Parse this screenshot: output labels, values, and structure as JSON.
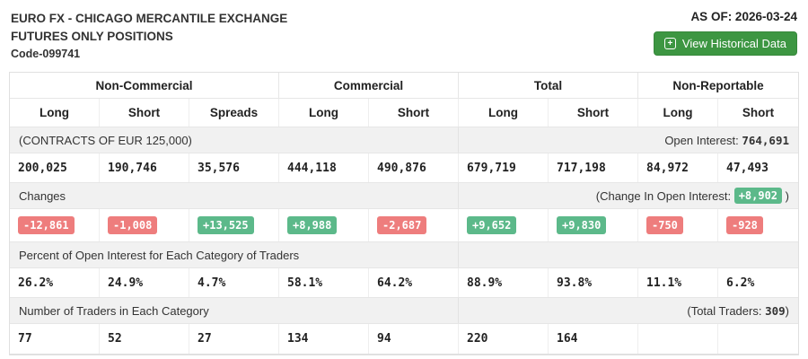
{
  "header": {
    "title_line1": "EURO FX - CHICAGO MERCANTILE EXCHANGE",
    "title_line2": "FUTURES ONLY POSITIONS",
    "code": "Code-099741",
    "as_of": "AS OF: 2026-03-24",
    "historical_button_label": "View Historical Data",
    "historical_button_icon": "historical-data-icon",
    "button_color": "#3d9642"
  },
  "colors": {
    "positive_badge": "#5cb98a",
    "negative_badge": "#ee7d7d",
    "section_band": "#f1f1f1",
    "border": "#e6e6e6"
  },
  "table": {
    "groups": [
      {
        "label": "Non-Commercial"
      },
      {
        "label": "Commercial"
      },
      {
        "label": "Total"
      },
      {
        "label": "Non-Reportable"
      }
    ],
    "columns": [
      "Long",
      "Short",
      "Spreads",
      "Long",
      "Short",
      "Long",
      "Short",
      "Long",
      "Short"
    ],
    "contracts_label": "(CONTRACTS OF EUR 125,000)",
    "open_interest_prefix": "Open Interest: ",
    "open_interest_value": "764,691",
    "positions": [
      "200,025",
      "190,746",
      "35,576",
      "444,118",
      "490,876",
      "679,719",
      "717,198",
      "84,972",
      "47,493"
    ],
    "changes_label": "Changes",
    "change_oi_prefix": "(Change In Open Interest: ",
    "change_oi_value": "+8,902",
    "change_oi_suffix": " )",
    "changes": [
      "-12,861",
      "-1,008",
      "+13,525",
      "+8,988",
      "-2,687",
      "+9,652",
      "+9,830",
      "-750",
      "-928"
    ],
    "percent_label": "Percent of Open Interest for Each Category of Traders",
    "percents": [
      "26.2%",
      "24.9%",
      "4.7%",
      "58.1%",
      "64.2%",
      "88.9%",
      "93.8%",
      "11.1%",
      "6.2%"
    ],
    "traders_label": "Number of Traders in Each Category",
    "total_traders_prefix": "(Total Traders: ",
    "total_traders_value": "309",
    "total_traders_suffix": ")",
    "traders": [
      "77",
      "52",
      "27",
      "134",
      "94",
      "220",
      "164",
      "",
      ""
    ]
  }
}
